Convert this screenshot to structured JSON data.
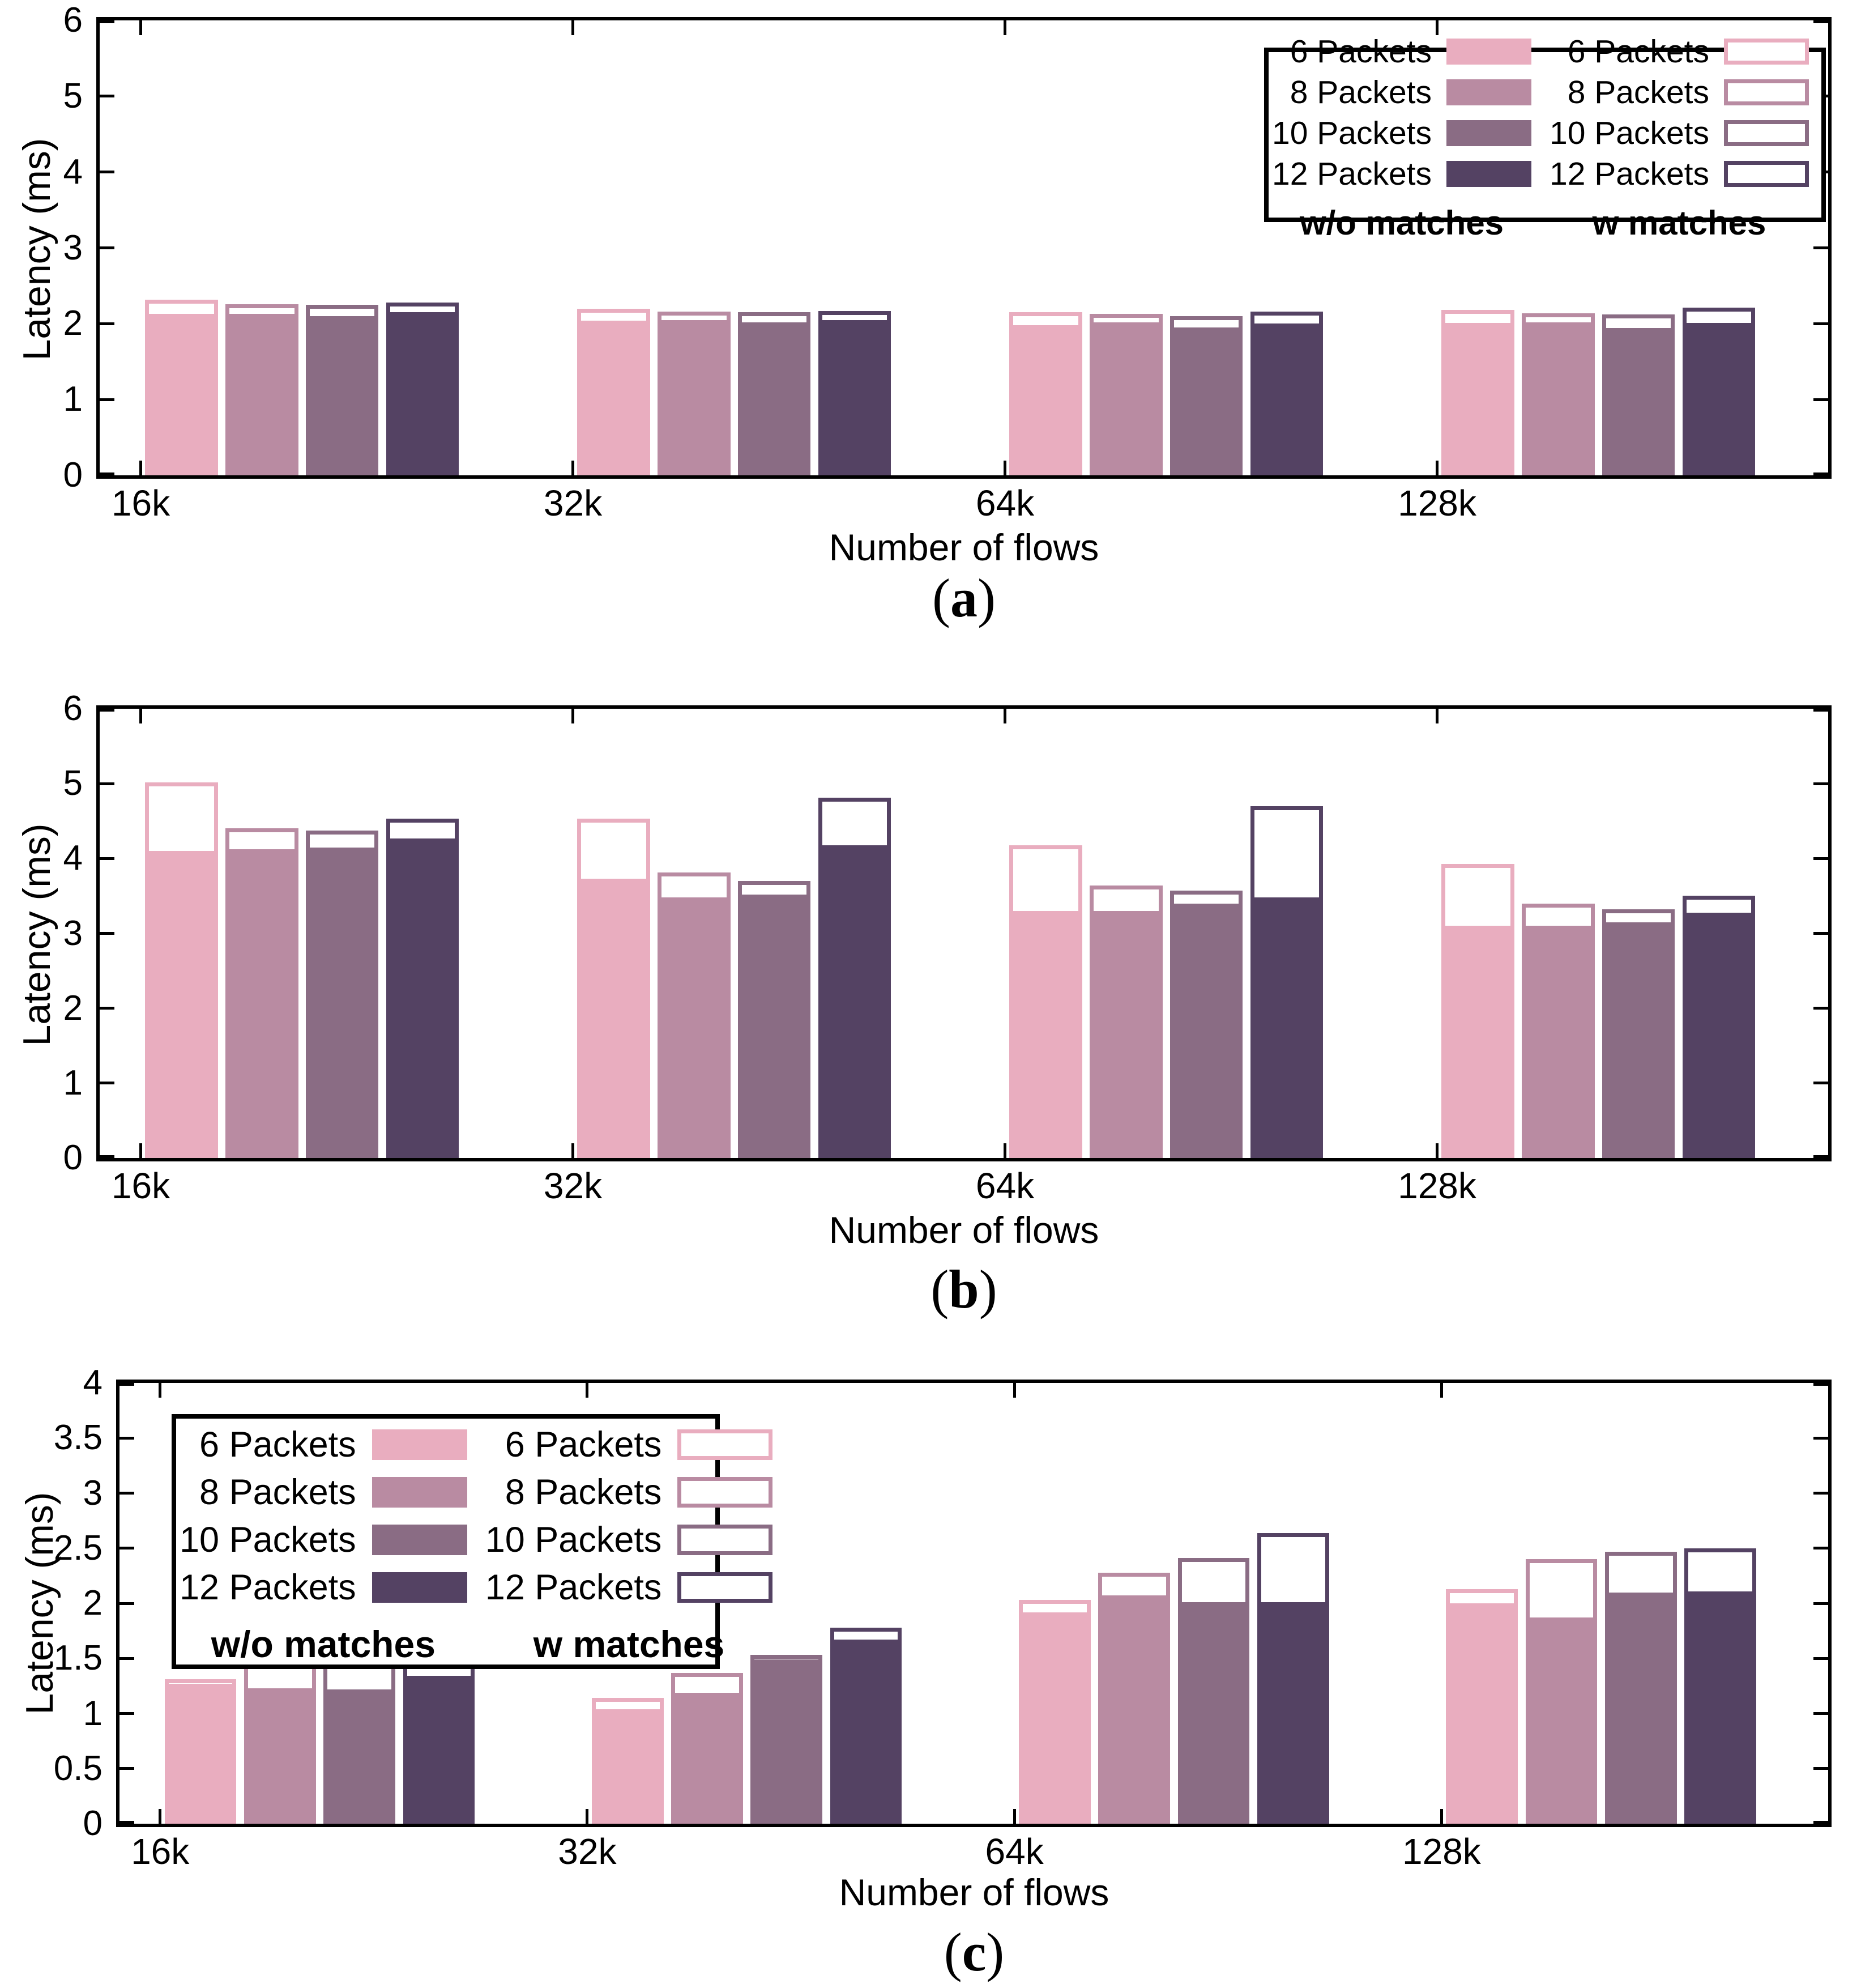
{
  "figure": {
    "background": "#ffffff",
    "axis_color": "#000000",
    "series": [
      {
        "label": "6 Packets",
        "color": "#e9adbf"
      },
      {
        "label": "8 Packets",
        "color": "#b98ba2"
      },
      {
        "label": "10 Packets",
        "color": "#8a6c84"
      },
      {
        "label": "12 Packets",
        "color": "#544263"
      }
    ]
  },
  "chart_data": [
    {
      "id": "a",
      "type": "bar",
      "caption_open": "(",
      "caption_letter": "a",
      "caption_close": ")",
      "xlabel": "Number of flows",
      "ylabel": "Latency (ms)",
      "ylim": [
        0,
        6
      ],
      "yticks": [
        "0",
        "1",
        "2",
        "3",
        "4",
        "5",
        "6"
      ],
      "grid": false,
      "categories": [
        "16k",
        "32k",
        "64k",
        "128k"
      ],
      "legend": {
        "position": "top-right",
        "filled_title": "w/o matches",
        "outline_title": "w matches"
      },
      "series_filled": [
        {
          "name": "6 Packets w/o matches",
          "values": [
            2.13,
            2.04,
            1.98,
            2.01
          ]
        },
        {
          "name": "8 Packets w/o matches",
          "values": [
            2.13,
            2.05,
            2.02,
            2.02
          ]
        },
        {
          "name": "10 Packets w/o matches",
          "values": [
            2.1,
            2.02,
            1.95,
            1.94
          ]
        },
        {
          "name": "12 Packets w/o matches",
          "values": [
            2.15,
            2.05,
            2.0,
            2.01
          ]
        }
      ],
      "series_outline": [
        {
          "name": "6 Packets w matches",
          "values": [
            2.32,
            2.2,
            2.15,
            2.18
          ]
        },
        {
          "name": "8 Packets w matches",
          "values": [
            2.26,
            2.16,
            2.13,
            2.14
          ]
        },
        {
          "name": "10 Packets w matches",
          "values": [
            2.25,
            2.15,
            2.1,
            2.12
          ]
        },
        {
          "name": "12 Packets w matches",
          "values": [
            2.28,
            2.17,
            2.16,
            2.21
          ]
        }
      ]
    },
    {
      "id": "b",
      "type": "bar",
      "caption_open": "(",
      "caption_letter": "b",
      "caption_close": ")",
      "xlabel": "Number of flows",
      "ylabel": "Latency (ms)",
      "ylim": [
        0,
        6
      ],
      "yticks": [
        "0",
        "1",
        "2",
        "3",
        "4",
        "5",
        "6"
      ],
      "grid": false,
      "categories": [
        "16k",
        "32k",
        "64k",
        "128k"
      ],
      "legend": null,
      "series_filled": [
        {
          "name": "6 Packets w/o matches",
          "values": [
            4.1,
            3.73,
            3.3,
            3.1
          ]
        },
        {
          "name": "8 Packets w/o matches",
          "values": [
            4.12,
            3.48,
            3.3,
            3.1
          ]
        },
        {
          "name": "10 Packets w/o matches",
          "values": [
            4.15,
            3.52,
            3.4,
            3.15
          ]
        },
        {
          "name": "12 Packets w/o matches",
          "values": [
            4.27,
            4.18,
            3.48,
            3.28
          ]
        }
      ],
      "series_outline": [
        {
          "name": "6 Packets w matches",
          "values": [
            5.02,
            4.53,
            4.18,
            3.93
          ]
        },
        {
          "name": "8 Packets w matches",
          "values": [
            4.4,
            3.81,
            3.64,
            3.4
          ]
        },
        {
          "name": "10 Packets w matches",
          "values": [
            4.37,
            3.7,
            3.57,
            3.32
          ]
        },
        {
          "name": "12 Packets w matches",
          "values": [
            4.53,
            4.81,
            4.7,
            3.5
          ]
        }
      ]
    },
    {
      "id": "c",
      "type": "bar",
      "caption_open": "(",
      "caption_letter": "c",
      "caption_close": ")",
      "xlabel": "Number of flows",
      "ylabel": "Latency (ms)",
      "ylim": [
        0,
        4
      ],
      "yticks": [
        "0",
        "0.5",
        "1",
        "1.5",
        "2",
        "2.5",
        "3",
        "3.5",
        "4"
      ],
      "grid": false,
      "categories": [
        "16k",
        "32k",
        "64k",
        "128k"
      ],
      "legend": {
        "position": "top-left",
        "filled_title": "w/o matches",
        "outline_title": "w matches"
      },
      "series_filled": [
        {
          "name": "6 Packets w/o matches",
          "values": [
            1.27,
            1.04,
            1.92,
            2.0
          ]
        },
        {
          "name": "8 Packets w/o matches",
          "values": [
            1.23,
            1.19,
            2.07,
            1.87
          ]
        },
        {
          "name": "10 Packets w/o matches",
          "values": [
            1.22,
            1.49,
            2.01,
            2.1
          ]
        },
        {
          "name": "12 Packets w/o matches",
          "values": [
            1.34,
            1.67,
            2.01,
            2.11
          ]
        }
      ],
      "series_outline": [
        {
          "name": "6 Packets w matches",
          "values": [
            1.31,
            1.14,
            2.03,
            2.13
          ]
        },
        {
          "name": "8 Packets w matches",
          "values": [
            1.56,
            1.37,
            2.28,
            2.4
          ]
        },
        {
          "name": "10 Packets w matches",
          "values": [
            1.64,
            1.53,
            2.41,
            2.47
          ]
        },
        {
          "name": "12 Packets w matches",
          "values": [
            1.98,
            1.78,
            2.64,
            2.5
          ]
        }
      ]
    }
  ]
}
